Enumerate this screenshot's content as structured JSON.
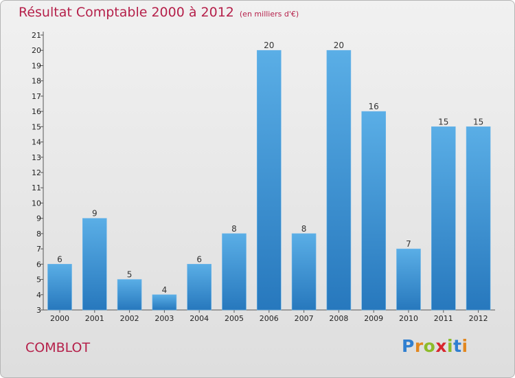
{
  "page": {
    "commune": "COMBLOT",
    "brand": {
      "letters": [
        {
          "ch": "P",
          "color": "#2f7fd0"
        },
        {
          "ch": "r",
          "color": "#e2871f"
        },
        {
          "ch": "o",
          "color": "#8dbb2a"
        },
        {
          "ch": "x",
          "color": "#d8262e"
        },
        {
          "ch": "i",
          "color": "#8dbb2a"
        },
        {
          "ch": "t",
          "color": "#2f7fd0"
        },
        {
          "ch": "i",
          "color": "#e2871f"
        }
      ]
    }
  },
  "chart_data": {
    "type": "bar",
    "title": "Résultat Comptable 2000 à 2012",
    "subtitle": "(en milliers d'€)",
    "categories": [
      "2000",
      "2001",
      "2002",
      "2003",
      "2004",
      "2005",
      "2006",
      "2007",
      "2008",
      "2009",
      "2010",
      "2011",
      "2012"
    ],
    "values": [
      6,
      9,
      5,
      4,
      6,
      8,
      20,
      8,
      20,
      16,
      7,
      15,
      15
    ],
    "ylim": [
      3,
      21
    ],
    "yticks": [
      3,
      4,
      5,
      6,
      7,
      8,
      9,
      10,
      11,
      12,
      13,
      14,
      15,
      16,
      17,
      18,
      19,
      20,
      21
    ],
    "xlabel": "",
    "ylabel": "",
    "grid": false,
    "colors": {
      "bar_light": "#5aaee6",
      "bar_dark": "#2778bd",
      "title": "#b5204a"
    }
  }
}
